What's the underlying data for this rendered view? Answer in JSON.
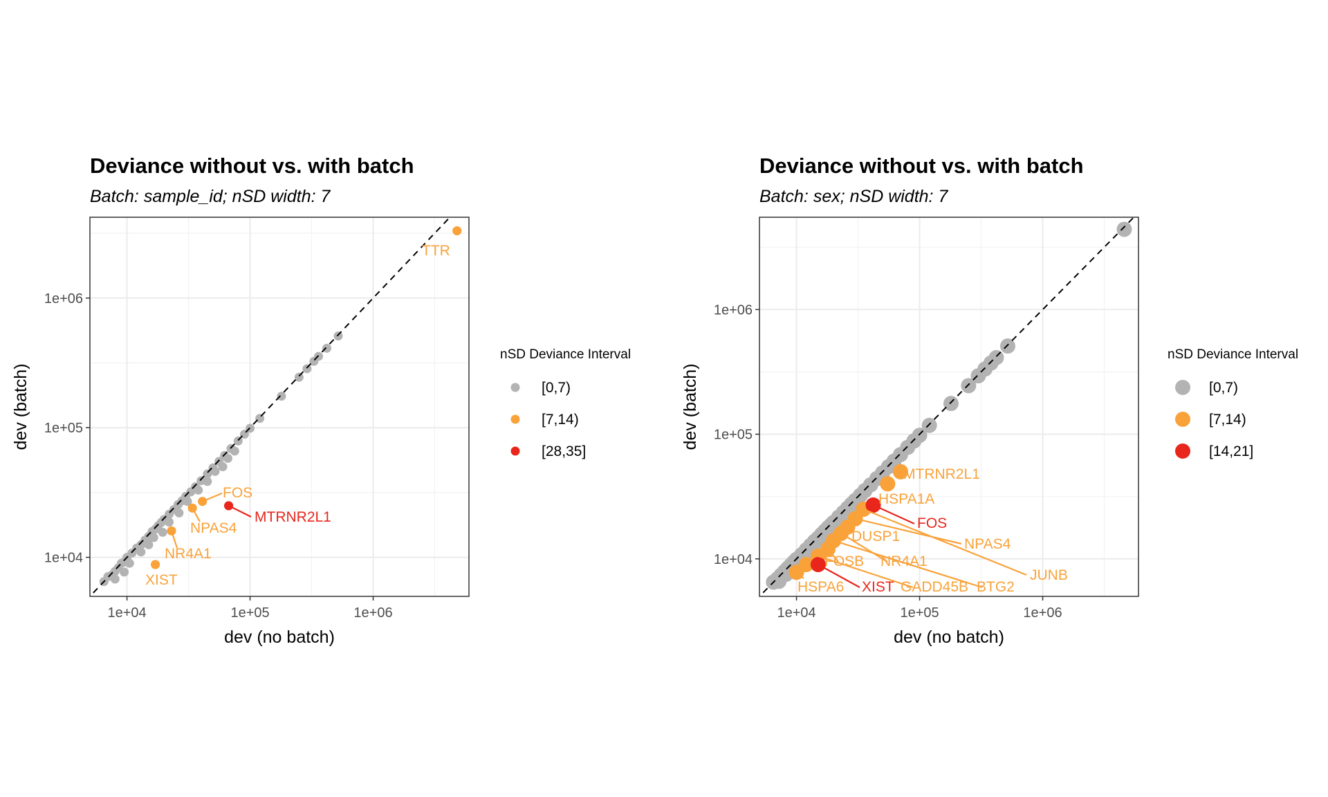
{
  "chart_data": [
    {
      "type": "scatter",
      "title": "Deviance without vs. with batch",
      "subtitle": "Batch: sample_id; nSD width: 7",
      "xlabel": "dev (no batch)",
      "ylabel": "dev (batch)",
      "x_scale": "log10",
      "y_scale": "log10",
      "xlim": [
        5000,
        6000000
      ],
      "ylim": [
        5000,
        4200000
      ],
      "x_ticks": [
        {
          "value": 10000,
          "label": "1e+04"
        },
        {
          "value": 100000,
          "label": "1e+05"
        },
        {
          "value": 1000000,
          "label": "1e+06"
        }
      ],
      "y_ticks": [
        {
          "value": 10000,
          "label": "1e+04"
        },
        {
          "value": 100000,
          "label": "1e+05"
        },
        {
          "value": 1000000,
          "label": "1e+06"
        }
      ],
      "reference_line": "y = x (dashed)",
      "grid": true,
      "point_size": "small",
      "legend": {
        "title": "nSD Deviance Interval",
        "placement": "right",
        "entries": [
          {
            "label": "[0,7)",
            "color": "#b3b3b3"
          },
          {
            "label": "[7,14)",
            "color": "#f9a23a"
          },
          {
            "label": "[28,35]",
            "color": "#e8261c"
          }
        ]
      },
      "series": [
        {
          "name": "[0,7)",
          "color": "#b3b3b3",
          "points": [
            [
              6500,
              6500
            ],
            [
              7000,
              7100
            ],
            [
              7500,
              7300
            ],
            [
              8000,
              7800
            ],
            [
              8500,
              8300
            ],
            [
              9000,
              9000
            ],
            [
              9500,
              9200
            ],
            [
              10000,
              10000
            ],
            [
              11000,
              10800
            ],
            [
              12000,
              11800
            ],
            [
              13000,
              12500
            ],
            [
              14000,
              13600
            ],
            [
              15000,
              14500
            ],
            [
              16000,
              15800
            ],
            [
              17000,
              16500
            ],
            [
              18000,
              17600
            ],
            [
              19000,
              18600
            ],
            [
              20000,
              19600
            ],
            [
              22000,
              21500
            ],
            [
              24000,
              23300
            ],
            [
              26000,
              25500
            ],
            [
              28000,
              27300
            ],
            [
              30000,
              29500
            ],
            [
              33000,
              32000
            ],
            [
              36000,
              35000
            ],
            [
              40000,
              39000
            ],
            [
              45000,
              44000
            ],
            [
              50000,
              49000
            ],
            [
              56000,
              55000
            ],
            [
              62000,
              61000
            ],
            [
              70000,
              69000
            ],
            [
              80000,
              79000
            ],
            [
              90000,
              89000
            ],
            [
              100000,
              99000
            ],
            [
              120000,
              118000
            ],
            [
              180000,
              175000
            ],
            [
              250000,
              245000
            ],
            [
              290000,
              285000
            ],
            [
              330000,
              325000
            ],
            [
              360000,
              355000
            ],
            [
              420000,
              410000
            ],
            [
              520000,
              510000
            ],
            [
              8000,
              6800
            ],
            [
              9500,
              7700
            ],
            [
              10500,
              9000
            ],
            [
              13000,
              11000
            ],
            [
              15000,
              12500
            ],
            [
              16500,
              14200
            ],
            [
              19500,
              15600
            ],
            [
              22000,
              18700
            ],
            [
              26500,
              22000
            ],
            [
              31000,
              27000
            ],
            [
              38000,
              33000
            ],
            [
              45000,
              38500
            ],
            [
              52000,
              46000
            ],
            [
              60000,
              50000
            ],
            [
              66000,
              58000
            ],
            [
              75000,
              66000
            ]
          ]
        },
        {
          "name": "[7,14)",
          "color": "#f9a23a",
          "points": [
            {
              "x": 4800000,
              "y": 3300000,
              "label": "TTR"
            },
            {
              "x": 41000,
              "y": 27000,
              "label": "FOS"
            },
            {
              "x": 34000,
              "y": 24000,
              "label": "NPAS4"
            },
            {
              "x": 23000,
              "y": 16000,
              "label": "NR4A1"
            },
            {
              "x": 17000,
              "y": 8800,
              "label": "XIST"
            }
          ]
        },
        {
          "name": "[28,35]",
          "color": "#e8261c",
          "points": [
            {
              "x": 67000,
              "y": 25000,
              "label": "MTRNR2L1"
            }
          ]
        }
      ]
    },
    {
      "type": "scatter",
      "title": "Deviance without vs. with batch",
      "subtitle": "Batch: sex; nSD width: 7",
      "xlabel": "dev (no batch)",
      "ylabel": "dev (batch)",
      "x_scale": "log10",
      "y_scale": "log10",
      "xlim": [
        5000,
        6000000
      ],
      "ylim": [
        5000,
        5500000
      ],
      "x_ticks": [
        {
          "value": 10000,
          "label": "1e+04"
        },
        {
          "value": 100000,
          "label": "1e+05"
        },
        {
          "value": 1000000,
          "label": "1e+06"
        }
      ],
      "y_ticks": [
        {
          "value": 10000,
          "label": "1e+04"
        },
        {
          "value": 100000,
          "label": "1e+05"
        },
        {
          "value": 1000000,
          "label": "1e+06"
        }
      ],
      "reference_line": "y = x (dashed)",
      "grid": true,
      "point_size": "large",
      "legend": {
        "title": "nSD Deviance Interval",
        "placement": "right",
        "entries": [
          {
            "label": "[0,7)",
            "color": "#b3b3b3"
          },
          {
            "label": "[7,14)",
            "color": "#f9a23a"
          },
          {
            "label": "[14,21]",
            "color": "#e8261c"
          }
        ]
      },
      "series": [
        {
          "name": "[0,7)",
          "color": "#b3b3b3",
          "points": [
            [
              6500,
              6500
            ],
            [
              7000,
              6900
            ],
            [
              7500,
              7400
            ],
            [
              8000,
              7900
            ],
            [
              8500,
              8400
            ],
            [
              9000,
              8900
            ],
            [
              9500,
              9400
            ],
            [
              10000,
              9900
            ],
            [
              11000,
              10800
            ],
            [
              12000,
              11800
            ],
            [
              13000,
              12800
            ],
            [
              14000,
              13800
            ],
            [
              15000,
              14700
            ],
            [
              16000,
              15700
            ],
            [
              17000,
              16700
            ],
            [
              18000,
              17700
            ],
            [
              19000,
              18600
            ],
            [
              20000,
              19600
            ],
            [
              22000,
              21600
            ],
            [
              24000,
              23500
            ],
            [
              26000,
              25500
            ],
            [
              28000,
              27500
            ],
            [
              30000,
              29400
            ],
            [
              33000,
              32300
            ],
            [
              36000,
              35300
            ],
            [
              40000,
              39200
            ],
            [
              45000,
              44100
            ],
            [
              50000,
              49000
            ],
            [
              56000,
              54900
            ],
            [
              62000,
              60800
            ],
            [
              70000,
              68600
            ],
            [
              80000,
              78400
            ],
            [
              90000,
              88200
            ],
            [
              100000,
              98000
            ],
            [
              120000,
              117600
            ],
            [
              180000,
              176400
            ],
            [
              250000,
              245000
            ],
            [
              300000,
              294000
            ],
            [
              340000,
              333200
            ],
            [
              380000,
              372400
            ],
            [
              420000,
              411600
            ],
            [
              520000,
              509600
            ],
            [
              4600000,
              4400000
            ],
            [
              7200,
              6600
            ],
            [
              8200,
              7500
            ],
            [
              9300,
              8500
            ],
            [
              10500,
              9600
            ],
            [
              11800,
              10800
            ],
            [
              13500,
              12300
            ],
            [
              15500,
              14100
            ],
            [
              18000,
              16400
            ],
            [
              21000,
              19100
            ],
            [
              25000,
              22800
            ],
            [
              29000,
              26400
            ]
          ]
        },
        {
          "name": "[7,14)",
          "color": "#f9a23a",
          "points": [
            {
              "x": 70000,
              "y": 50000,
              "label": "MTRNR2L1"
            },
            {
              "x": 55000,
              "y": 40000,
              "label": "HSPA1A"
            },
            {
              "x": 35000,
              "y": 25000,
              "label": ""
            },
            {
              "x": 30000,
              "y": 21000,
              "label": ""
            },
            {
              "x": 26000,
              "y": 18000,
              "label": "DUSP1"
            },
            {
              "x": 23000,
              "y": 16000,
              "label": ""
            },
            {
              "x": 20000,
              "y": 14000,
              "label": ""
            },
            {
              "x": 18000,
              "y": 12000,
              "label": ""
            },
            {
              "x": 15000,
              "y": 10500,
              "label": ""
            },
            {
              "x": 12000,
              "y": 9000,
              "label": ""
            },
            {
              "x": 10000,
              "y": 7800,
              "label": ""
            }
          ],
          "callouts": [
            {
              "label": "NPAS4",
              "x": 30000,
              "y": 21000
            },
            {
              "label": "NR4A1",
              "x": 23000,
              "y": 16000
            },
            {
              "label": "JUNB",
              "x": 35000,
              "y": 25000
            },
            {
              "label": "FOSB",
              "x": 18000,
              "y": 12000
            },
            {
              "label": "GADD45B",
              "x": 15000,
              "y": 10500
            },
            {
              "label": "BTG2",
              "x": 20000,
              "y": 14000
            },
            {
              "label": "HSPA6",
              "x": 10000,
              "y": 7800
            }
          ]
        },
        {
          "name": "[14,21]",
          "color": "#e8261c",
          "points": [
            {
              "x": 42000,
              "y": 27000,
              "label": "FOS"
            },
            {
              "x": 15000,
              "y": 9000,
              "label": "XIST"
            }
          ]
        }
      ]
    }
  ]
}
